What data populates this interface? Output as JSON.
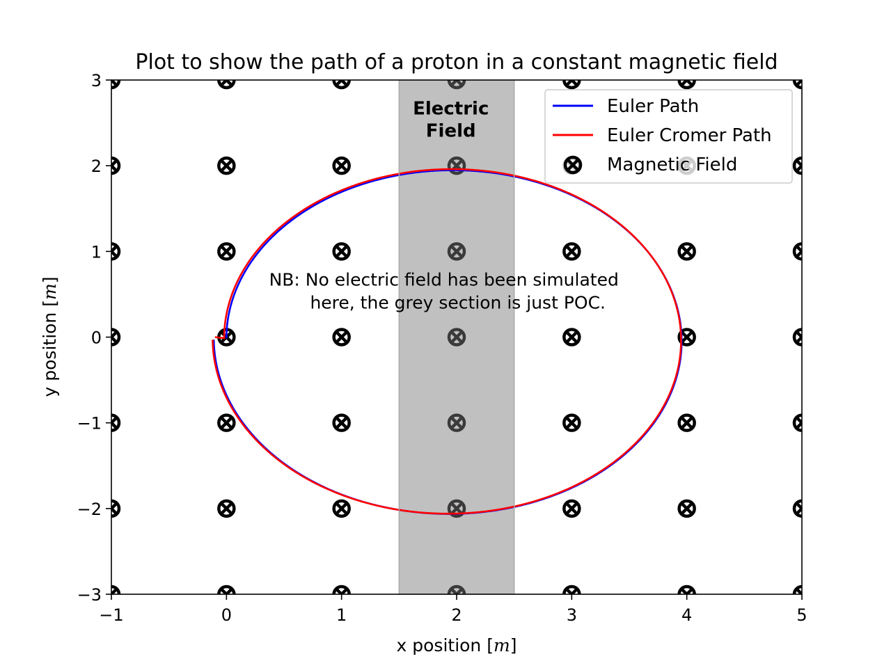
{
  "chart_data": {
    "type": "line",
    "title": "Plot to show the path of a proton in a constant magnetic field",
    "xlabel_prefix": "x  position  ",
    "ylabel_prefix": "y  position ",
    "unit": "m",
    "xlim": [
      -1,
      5
    ],
    "ylim": [
      -3,
      3
    ],
    "x_ticks": [
      -1,
      0,
      1,
      2,
      3,
      4,
      5
    ],
    "y_ticks": [
      -3,
      -2,
      -1,
      0,
      1,
      2,
      3
    ],
    "x_tick_labels": [
      "−1",
      "0",
      "1",
      "2",
      "3",
      "4",
      "5"
    ],
    "y_tick_labels": [
      "−3",
      "−2",
      "−1",
      "0",
      "1",
      "2",
      "3"
    ],
    "grid": false,
    "legend_position": "top-right",
    "series": [
      {
        "name": "Euler Path",
        "color": "#0000ff",
        "path_type": "spiral",
        "start": [
          0.0,
          0.0
        ],
        "center": [
          1.95,
          -0.03
        ],
        "start_radius": 1.95,
        "end_radius": 2.06,
        "center_x_end": 1.95,
        "start_angle_deg": 180,
        "turns": 1.0
      },
      {
        "name": "Euler Cromer Path",
        "color": "#ff0000",
        "path_type": "spiral",
        "start": [
          -0.1,
          0.0
        ],
        "center": [
          1.95,
          -0.03
        ],
        "start_radius": 1.97,
        "end_radius": 2.05,
        "center_x_end": 1.93,
        "start_angle_deg": 180,
        "turns": 1.0
      },
      {
        "name": "Magnetic Field",
        "marker": "circle-x",
        "color": "#000000",
        "x": [
          -1,
          0,
          1,
          2,
          3,
          4,
          5
        ],
        "y": [
          -3,
          -2,
          -1,
          0,
          1,
          2,
          3
        ]
      }
    ],
    "shaded_region": {
      "x": [
        1.5,
        2.5
      ],
      "color": "#c0c0c0",
      "label_lines": [
        "Electric",
        "Field"
      ],
      "label_position": [
        1.95,
        2.6
      ]
    },
    "annotation": {
      "lines": [
        "NB: No electric field has been simulated",
        "here, the grey section is just POC."
      ],
      "position": [
        1.95,
        0.6
      ]
    }
  }
}
